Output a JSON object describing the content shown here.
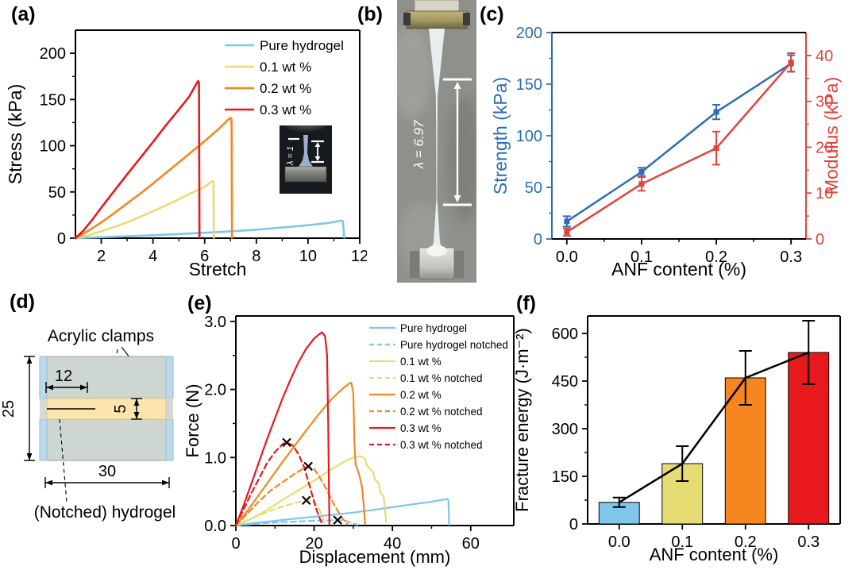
{
  "panel_labels": {
    "a": "(a)",
    "b": "(b)",
    "c": "(c)",
    "d": "(d)",
    "e": "(e)",
    "f": "(f)"
  },
  "photo_b": {
    "lambda_label": "λ = 6.97"
  },
  "inset_a": {
    "lambda_label": "λ = 1"
  },
  "diagram_d": {
    "clamps_label": "Acrylic clamps",
    "hydrogel_label": "(Notched) hydrogel",
    "dim_notch_mm": "12",
    "dim_total_mm": "25",
    "dim_gel_mm": "5",
    "dim_width_mm": "30",
    "clamp_color": "#cdd6d0",
    "clamp_edge_color": "#b9daec",
    "hydrogel_color": "#fce4ae"
  },
  "chart_data": [
    {
      "id": "a",
      "type": "line",
      "xlabel": "Stretch",
      "ylabel": "Stress (kPa)",
      "xlim": [
        1,
        12
      ],
      "ylim": [
        0,
        225
      ],
      "xticks": [
        2,
        4,
        6,
        8,
        10,
        12
      ],
      "xtick_labels": [
        "2",
        "4",
        "6",
        "8",
        "10",
        "12"
      ],
      "yticks": [
        0,
        50,
        100,
        150,
        200
      ],
      "ytick_labels": [
        "0",
        "50",
        "100",
        "150",
        "200"
      ],
      "grid": false,
      "legend_position": "top-right",
      "series": [
        {
          "name": "Pure hydrogel",
          "color": "#7fc6ea",
          "dash": false,
          "points": [
            [
              1,
              0
            ],
            [
              2,
              1
            ],
            [
              3,
              2
            ],
            [
              4,
              3.2
            ],
            [
              5,
              4.5
            ],
            [
              6,
              5.8
            ],
            [
              7,
              7.4
            ],
            [
              8,
              9.2
            ],
            [
              9,
              11.5
            ],
            [
              10,
              14
            ],
            [
              10.8,
              16.5
            ],
            [
              11.3,
              19
            ],
            [
              11.35,
              18.5
            ],
            [
              11.4,
              0.5
            ]
          ]
        },
        {
          "name": "0.1 wt %",
          "color": "#e7db74",
          "dash": false,
          "points": [
            [
              1,
              0
            ],
            [
              1.5,
              3
            ],
            [
              2,
              7.5
            ],
            [
              2.5,
              12
            ],
            [
              3,
              17
            ],
            [
              3.5,
              23
            ],
            [
              4,
              29
            ],
            [
              4.5,
              35.5
            ],
            [
              5,
              42
            ],
            [
              5.5,
              49
            ],
            [
              6,
              55.5
            ],
            [
              6.3,
              62
            ],
            [
              6.34,
              61
            ],
            [
              6.36,
              0.5
            ]
          ]
        },
        {
          "name": "0.2 wt %",
          "color": "#f6861f",
          "dash": false,
          "points": [
            [
              1,
              0
            ],
            [
              1.5,
              8
            ],
            [
              2,
              17
            ],
            [
              2.5,
              27
            ],
            [
              3,
              37.5
            ],
            [
              3.5,
              48
            ],
            [
              4,
              59
            ],
            [
              4.5,
              70.5
            ],
            [
              5,
              82
            ],
            [
              5.5,
              93.5
            ],
            [
              6,
              105
            ],
            [
              6.5,
              117
            ],
            [
              6.9,
              128
            ],
            [
              7,
              130
            ],
            [
              7.04,
              129
            ],
            [
              7.06,
              0.5
            ]
          ]
        },
        {
          "name": "0.3 wt %",
          "color": "#e8191d",
          "dash": false,
          "points": [
            [
              1,
              0
            ],
            [
              1.3,
              8
            ],
            [
              1.6,
              18
            ],
            [
              2,
              33
            ],
            [
              2.5,
              51
            ],
            [
              3,
              69
            ],
            [
              3.5,
              86.5
            ],
            [
              4,
              104
            ],
            [
              4.5,
              122
            ],
            [
              5,
              139
            ],
            [
              5.4,
              153
            ],
            [
              5.7,
              168
            ],
            [
              5.75,
              170
            ],
            [
              5.78,
              168
            ],
            [
              5.8,
              0.5
            ]
          ]
        }
      ]
    },
    {
      "id": "c",
      "type": "dual-line",
      "xlabel": "ANF content (%)",
      "ylabel_left": "Strength (kPa)",
      "ylabel_right": "Modulus (kPa)",
      "axis_color_left": "#2c6db5",
      "axis_color_right": "#e2433b",
      "xlim": [
        -0.02,
        0.32
      ],
      "ylim_left": [
        0,
        200
      ],
      "ylim_right": [
        0,
        45
      ],
      "xticks": [
        0,
        0.1,
        0.2,
        0.3
      ],
      "xtick_labels": [
        "0.0",
        "0.1",
        "0.2",
        "0.3"
      ],
      "yticks_left": [
        0,
        50,
        100,
        150,
        200
      ],
      "ytick_labels_left": [
        "0",
        "50",
        "100",
        "150",
        "200"
      ],
      "yticks_right": [
        0,
        10,
        20,
        30,
        40
      ],
      "ytick_labels_right": [
        "0",
        "10",
        "20",
        "30",
        "40"
      ],
      "x": [
        0,
        0.1,
        0.2,
        0.3
      ],
      "series": [
        {
          "name": "Strength",
          "axis": "left",
          "color": "#2c6db5",
          "values": [
            17,
            65,
            123,
            170
          ],
          "errors": [
            5,
            4,
            7,
            8
          ]
        },
        {
          "name": "Modulus",
          "axis": "right",
          "color": "#e2433b",
          "values": [
            1.5,
            12,
            19.8,
            38.5
          ],
          "errors": [
            0.8,
            1.5,
            3.6,
            2
          ]
        }
      ]
    },
    {
      "id": "e",
      "type": "line",
      "xlabel": "Displacement (mm)",
      "ylabel": "Force (N)",
      "xlim": [
        0,
        71
      ],
      "ylim": [
        0,
        3.08
      ],
      "xticks": [
        0,
        20,
        40,
        60
      ],
      "xtick_labels": [
        "0",
        "20",
        "40",
        "60"
      ],
      "yticks": [
        0,
        1,
        2,
        3
      ],
      "ytick_labels": [
        "0.0",
        "1.0",
        "2.0",
        "3.0"
      ],
      "grid": false,
      "legend_position": "top-right",
      "series": [
        {
          "name": "Pure hydrogel",
          "color": "#7fc6ea",
          "dash": false,
          "points": [
            [
              0,
              0
            ],
            [
              5,
              0.04
            ],
            [
              10,
              0.07
            ],
            [
              15,
              0.1
            ],
            [
              20,
              0.13
            ],
            [
              25,
              0.16
            ],
            [
              30,
              0.19
            ],
            [
              35,
              0.23
            ],
            [
              40,
              0.27
            ],
            [
              45,
              0.31
            ],
            [
              50,
              0.35
            ],
            [
              53,
              0.38
            ],
            [
              54,
              0.39
            ],
            [
              54.3,
              0.37
            ],
            [
              54.5,
              0.01
            ]
          ]
        },
        {
          "name": "Pure hydrogel notched",
          "color": "#7fc6ea",
          "dash": true,
          "points": [
            [
              0,
              0
            ],
            [
              4,
              0.02
            ],
            [
              8,
              0.04
            ],
            [
              12,
              0.05
            ],
            [
              16,
              0.06
            ],
            [
              20,
              0.07
            ],
            [
              23,
              0.075
            ],
            [
              26,
              0.08
            ],
            [
              28,
              0.07
            ],
            [
              29.5,
              0.04
            ],
            [
              31,
              0.01
            ]
          ]
        },
        {
          "name": "0.1 wt %",
          "color": "#e7db74",
          "dash": false,
          "points": [
            [
              0,
              0
            ],
            [
              4,
              0.1
            ],
            [
              8,
              0.23
            ],
            [
              12,
              0.38
            ],
            [
              16,
              0.52
            ],
            [
              20,
              0.66
            ],
            [
              24,
              0.81
            ],
            [
              28,
              0.95
            ],
            [
              30,
              1
            ],
            [
              32,
              1.02
            ],
            [
              33,
              0.98
            ],
            [
              33.5,
              0.88
            ],
            [
              34.5,
              0.82
            ],
            [
              35,
              0.8
            ],
            [
              35.5,
              0.68
            ],
            [
              36.5,
              0.62
            ],
            [
              37,
              0.48
            ],
            [
              37.8,
              0.42
            ],
            [
              38,
              0.3
            ],
            [
              38.4,
              0.05
            ]
          ]
        },
        {
          "name": "0.1 wt % notched",
          "color": "#e7db74",
          "dash": true,
          "points": [
            [
              0,
              0
            ],
            [
              3,
              0.08
            ],
            [
              6,
              0.15
            ],
            [
              9,
              0.22
            ],
            [
              12,
              0.28
            ],
            [
              15,
              0.33
            ],
            [
              18,
              0.37
            ],
            [
              19.5,
              0.36
            ],
            [
              21,
              0.28
            ],
            [
              22,
              0.15
            ],
            [
              22.8,
              0.02
            ]
          ]
        },
        {
          "name": "0.2 wt %",
          "color": "#f6861f",
          "dash": false,
          "points": [
            [
              0,
              0
            ],
            [
              3,
              0.22
            ],
            [
              6,
              0.46
            ],
            [
              9,
              0.7
            ],
            [
              12,
              0.94
            ],
            [
              15,
              1.17
            ],
            [
              18,
              1.4
            ],
            [
              21,
              1.62
            ],
            [
              24,
              1.83
            ],
            [
              27,
              2
            ],
            [
              29,
              2.09
            ],
            [
              29.5,
              2.1
            ],
            [
              30,
              1.95
            ],
            [
              30.3,
              1.2
            ],
            [
              30.6,
              0.9
            ],
            [
              31.5,
              0.75
            ],
            [
              32.3,
              0.55
            ],
            [
              32.8,
              0.2
            ],
            [
              33,
              0.02
            ]
          ]
        },
        {
          "name": "0.2 wt % notched",
          "color": "#f6861f",
          "dash": true,
          "points": [
            [
              0,
              0
            ],
            [
              3,
              0.18
            ],
            [
              6,
              0.36
            ],
            [
              9,
              0.52
            ],
            [
              12,
              0.64
            ],
            [
              15,
              0.76
            ],
            [
              17,
              0.83
            ],
            [
              18.5,
              0.87
            ],
            [
              20,
              0.83
            ],
            [
              21,
              0.75
            ],
            [
              23,
              0.55
            ],
            [
              25,
              0.32
            ],
            [
              27,
              0.12
            ],
            [
              28.5,
              0.02
            ]
          ]
        },
        {
          "name": "0.3 wt %",
          "color": "#e8191d",
          "dash": false,
          "points": [
            [
              0,
              0
            ],
            [
              2,
              0.3
            ],
            [
              4,
              0.62
            ],
            [
              6,
              0.95
            ],
            [
              8,
              1.27
            ],
            [
              10,
              1.58
            ],
            [
              12,
              1.88
            ],
            [
              14,
              2.15
            ],
            [
              16,
              2.4
            ],
            [
              18,
              2.6
            ],
            [
              20,
              2.75
            ],
            [
              21.5,
              2.82
            ],
            [
              22,
              2.84
            ],
            [
              22.8,
              2.78
            ],
            [
              23.3,
              2.5
            ],
            [
              23.6,
              1.5
            ],
            [
              23.8,
              0.5
            ],
            [
              23.9,
              0.02
            ]
          ]
        },
        {
          "name": "0.3 wt % notched",
          "color": "#e8191d",
          "dash": true,
          "points": [
            [
              0,
              0
            ],
            [
              2,
              0.24
            ],
            [
              4,
              0.48
            ],
            [
              6,
              0.7
            ],
            [
              8,
              0.92
            ],
            [
              10,
              1.08
            ],
            [
              12,
              1.2
            ],
            [
              13,
              1.22
            ],
            [
              14.5,
              1.18
            ],
            [
              16,
              1.05
            ],
            [
              17.5,
              0.85
            ],
            [
              19,
              0.55
            ],
            [
              20.5,
              0.25
            ],
            [
              21.8,
              0.05
            ],
            [
              22.5,
              0.01
            ]
          ]
        }
      ],
      "markers": {
        "symbol": "x",
        "color": "#000000",
        "points": [
          [
            13,
            1.22
          ],
          [
            18.5,
            0.87
          ],
          [
            18,
            0.37
          ],
          [
            26,
            0.08
          ]
        ]
      }
    },
    {
      "id": "f",
      "type": "bar",
      "xlabel": "ANF content (%)",
      "ylabel": "Fracture energy (J·m⁻²)",
      "categories": [
        "0.0",
        "0.1",
        "0.2",
        "0.3"
      ],
      "values": [
        68,
        190,
        460,
        540
      ],
      "errors": [
        15,
        55,
        85,
        100
      ],
      "bar_colors": [
        "#7fc6ea",
        "#e7db74",
        "#f6861f",
        "#e8191d"
      ],
      "ylim": [
        0,
        655
      ],
      "yticks": [
        0,
        150,
        300,
        450,
        600
      ],
      "ytick_labels": [
        "0",
        "150",
        "300",
        "450",
        "600"
      ],
      "overlay_line_color": "#000000"
    }
  ]
}
